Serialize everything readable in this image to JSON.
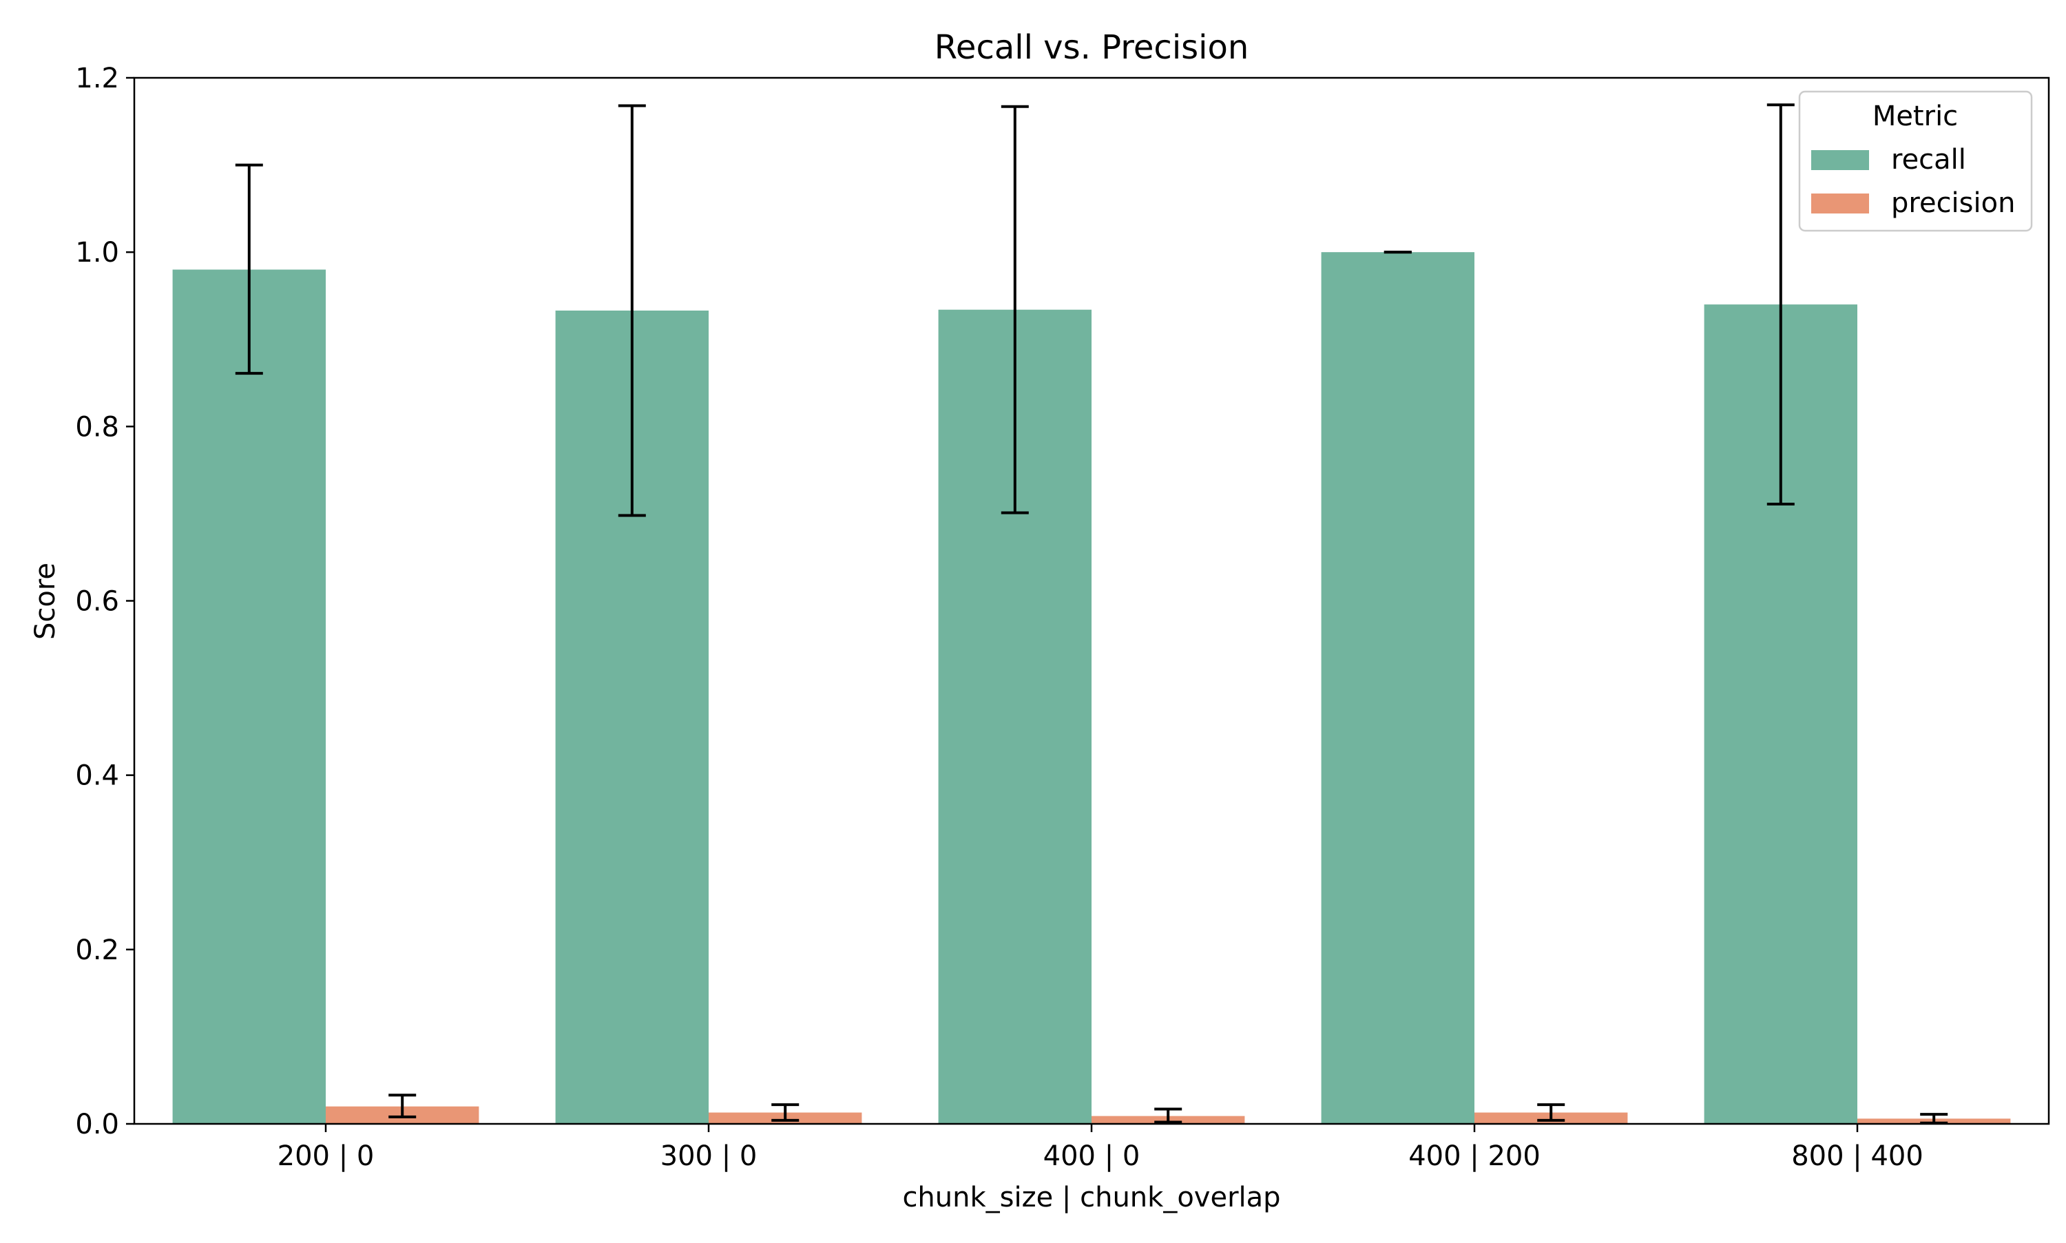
{
  "chart_data": {
    "type": "bar",
    "title": "Recall vs. Precision",
    "xlabel": "chunk_size | chunk_overlap",
    "ylabel": "Score",
    "categories": [
      "200 | 0",
      "300 | 0",
      "400 | 0",
      "400 | 200",
      "800 | 400"
    ],
    "ylim": [
      0,
      1.2
    ],
    "yticks": [
      0.0,
      0.2,
      0.4,
      0.6,
      0.8,
      1.0,
      1.2
    ],
    "ytick_labels": [
      "0.0",
      "0.2",
      "0.4",
      "0.6",
      "0.8",
      "1.0",
      "1.2"
    ],
    "grid": false,
    "legend": {
      "title": "Metric",
      "placement": "top-right"
    },
    "series": [
      {
        "name": "recall",
        "color": "#72b49e",
        "values": [
          0.98,
          0.933,
          0.934,
          1.0,
          0.94
        ],
        "error_low": [
          0.861,
          0.698,
          0.701,
          1.0,
          0.711
        ],
        "error_high": [
          1.1,
          1.168,
          1.167,
          1.0,
          1.169
        ]
      },
      {
        "name": "precision",
        "color": "#e99675",
        "values": [
          0.02,
          0.013,
          0.009,
          0.013,
          0.006
        ],
        "error_low": [
          0.008,
          0.004,
          0.002,
          0.004,
          0.001
        ],
        "error_high": [
          0.033,
          0.022,
          0.017,
          0.022,
          0.011
        ]
      }
    ]
  }
}
